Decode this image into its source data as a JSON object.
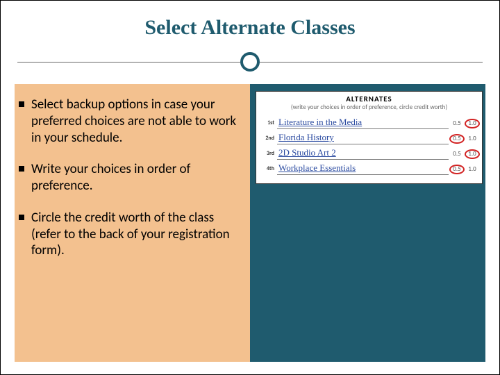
{
  "colors": {
    "title": "#1f5b6e",
    "ring": "#1f5b6e",
    "left_bg": "#f3c18f",
    "right_bg": "#1f5b6e",
    "hand_ink": "#2a4aa0",
    "circle_red": "#d22222"
  },
  "title": "Select Alternate Classes",
  "title_fontsize": 30,
  "bullets_fontsize": 19,
  "bullets": [
    "Select backup options in case your preferred choices are not able to work in your schedule.",
    "Write your choices in order of preference.",
    "Circle the credit worth of the class (refer to the back of your registration form)."
  ],
  "form": {
    "heading": "ALTERNATES",
    "subheading": "(write your choices in order of preference, circle credit worth)",
    "hand_fontsize": 13,
    "rows": [
      {
        "ord": "1st",
        "written": "Literature in the Media",
        "credits": [
          "0.5",
          "1.0"
        ],
        "circled": 1
      },
      {
        "ord": "2nd",
        "written": "Florida History",
        "credits": [
          "0.5",
          "1.0"
        ],
        "circled": 0
      },
      {
        "ord": "3rd",
        "written": "2D Studio Art 2",
        "credits": [
          "0.5",
          "1.0"
        ],
        "circled": 1
      },
      {
        "ord": "4th",
        "written": "Workplace Essentials",
        "credits": [
          "0.5",
          "1.0"
        ],
        "circled": 0
      }
    ]
  }
}
